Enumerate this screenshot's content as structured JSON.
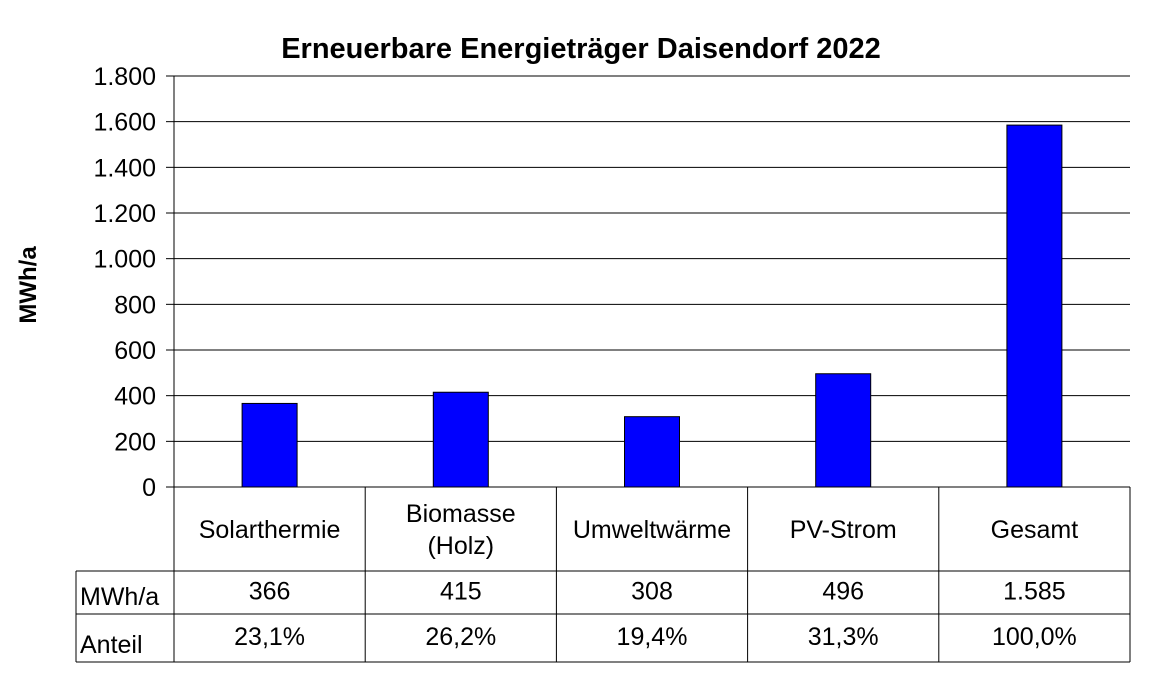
{
  "chart_data": {
    "type": "bar",
    "title": "Erneuerbare Energieträger Daisendorf 2022",
    "ylabel": "MWh/a",
    "ylim": [
      0,
      1800
    ],
    "yticks": [
      0,
      200,
      400,
      600,
      800,
      1000,
      1200,
      1400,
      1600,
      1800
    ],
    "ytick_labels": [
      "0",
      "200",
      "400",
      "600",
      "800",
      "1.000",
      "1.200",
      "1.400",
      "1.600",
      "1.800"
    ],
    "grid": true,
    "bar_color": "#0000ff",
    "categories": [
      [
        "Solarthermie"
      ],
      [
        "Biomasse",
        "(Holz)"
      ],
      [
        "Umweltwärme"
      ],
      [
        "PV-Strom"
      ],
      [
        "Gesamt"
      ]
    ],
    "values": [
      366,
      415,
      308,
      496,
      1585
    ],
    "table": {
      "rows": [
        {
          "label": "MWh/a",
          "cells": [
            "366",
            "415",
            "308",
            "496",
            "1.585"
          ]
        },
        {
          "label": "Anteil",
          "cells": [
            "23,1%",
            "26,2%",
            "19,4%",
            "31,3%",
            "100,0%"
          ]
        }
      ]
    }
  }
}
